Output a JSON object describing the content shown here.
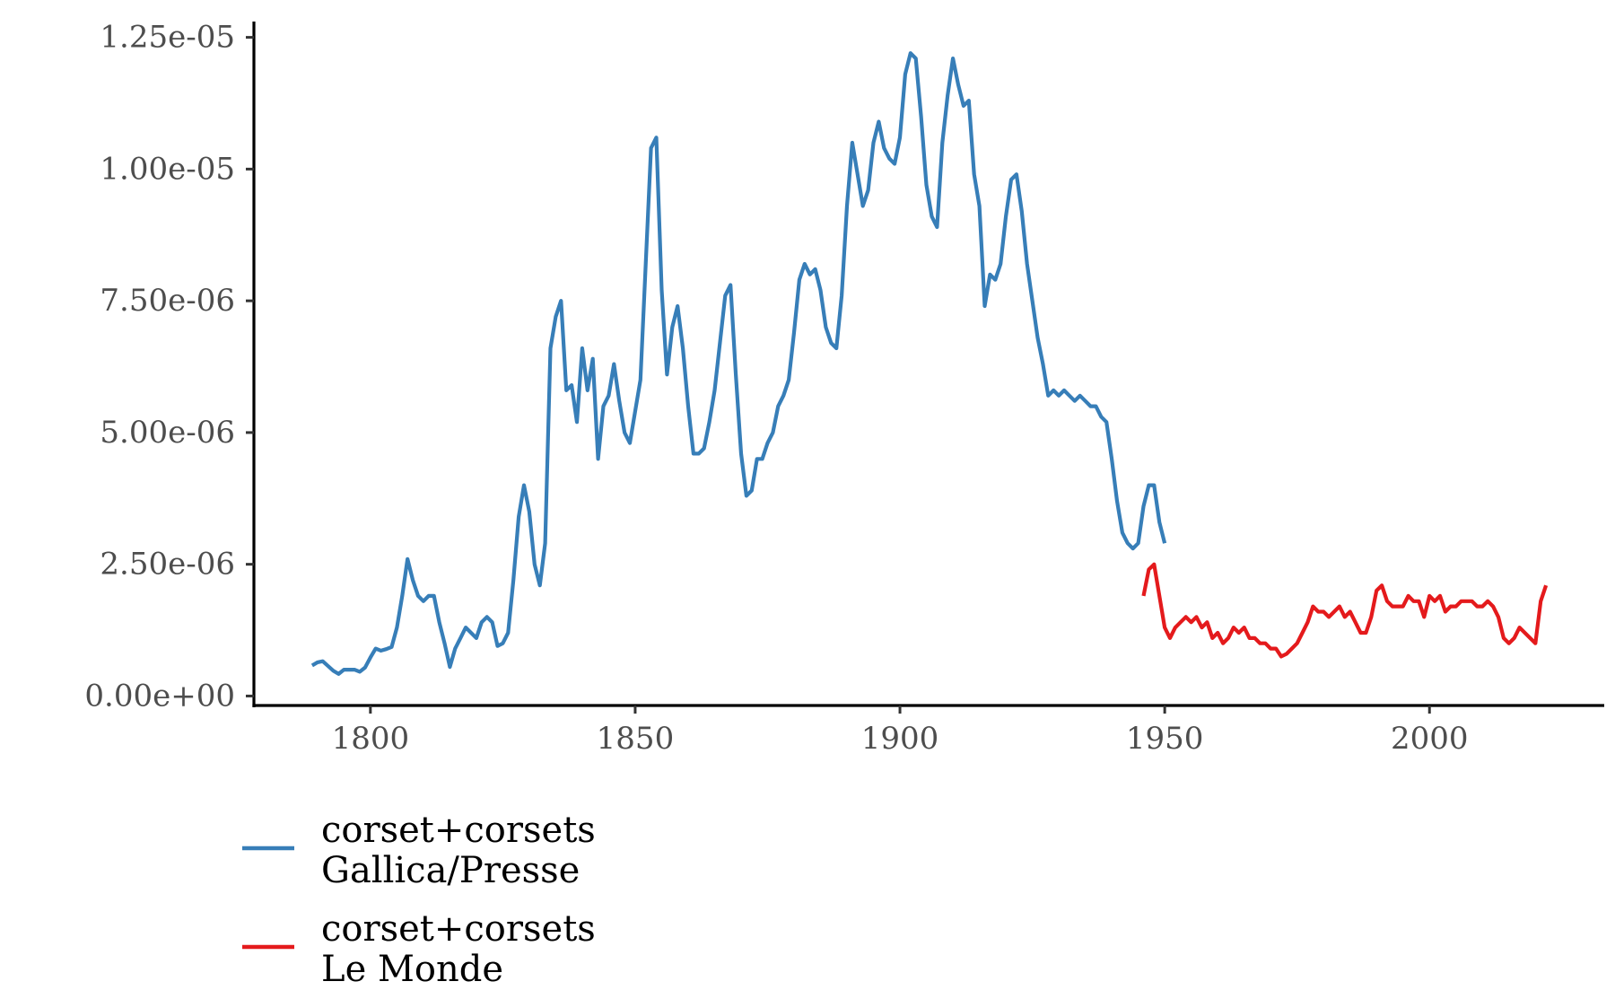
{
  "chart_data": {
    "type": "line",
    "title": "",
    "xlabel": "",
    "ylabel": "",
    "xlim": [
      1778,
      2033
    ],
    "ylim": [
      -1.8e-07,
      1.28e-05
    ],
    "x_ticks": [
      1800,
      1850,
      1900,
      1950,
      2000
    ],
    "x_tick_labels": [
      "1800",
      "1850",
      "1900",
      "1950",
      "2000"
    ],
    "y_ticks": [
      0,
      2.5e-06,
      5e-06,
      7.5e-06,
      1e-05,
      1.25e-05
    ],
    "y_tick_labels": [
      "0.00e+00",
      "2.50e-06",
      "5.00e-06",
      "7.50e-06",
      "1.00e-05",
      "1.25e-05"
    ],
    "grid": false,
    "legend_position": "bottom-left",
    "series": [
      {
        "name": "corset+corsets\nGallica/Presse",
        "name_lines": [
          "corset+corsets",
          "Gallica/Presse"
        ],
        "color": "#377eb8",
        "x": [
          1789,
          1790,
          1791,
          1792,
          1793,
          1794,
          1795,
          1796,
          1797,
          1798,
          1799,
          1800,
          1801,
          1802,
          1803,
          1804,
          1805,
          1806,
          1807,
          1808,
          1809,
          1810,
          1811,
          1812,
          1813,
          1814,
          1815,
          1816,
          1817,
          1818,
          1819,
          1820,
          1821,
          1822,
          1823,
          1824,
          1825,
          1826,
          1827,
          1828,
          1829,
          1830,
          1831,
          1832,
          1833,
          1834,
          1835,
          1836,
          1837,
          1838,
          1839,
          1840,
          1841,
          1842,
          1843,
          1844,
          1845,
          1846,
          1847,
          1848,
          1849,
          1850,
          1851,
          1852,
          1853,
          1854,
          1855,
          1856,
          1857,
          1858,
          1859,
          1860,
          1861,
          1862,
          1863,
          1864,
          1865,
          1866,
          1867,
          1868,
          1869,
          1870,
          1871,
          1872,
          1873,
          1874,
          1875,
          1876,
          1877,
          1878,
          1879,
          1880,
          1881,
          1882,
          1883,
          1884,
          1885,
          1886,
          1887,
          1888,
          1889,
          1890,
          1891,
          1892,
          1893,
          1894,
          1895,
          1896,
          1897,
          1898,
          1899,
          1900,
          1901,
          1902,
          1903,
          1904,
          1905,
          1906,
          1907,
          1908,
          1909,
          1910,
          1911,
          1912,
          1913,
          1914,
          1915,
          1916,
          1917,
          1918,
          1919,
          1920,
          1921,
          1922,
          1923,
          1924,
          1925,
          1926,
          1927,
          1928,
          1929,
          1930,
          1931,
          1932,
          1933,
          1934,
          1935,
          1936,
          1937,
          1938,
          1939,
          1940,
          1941,
          1942,
          1943,
          1944,
          1945,
          1946,
          1947,
          1948,
          1949,
          1950
        ],
        "values": [
          5.8e-07,
          6.4e-07,
          6.6e-07,
          5.7e-07,
          4.8e-07,
          4.2e-07,
          5e-07,
          5e-07,
          5e-07,
          4.6e-07,
          5.4e-07,
          7.3e-07,
          9e-07,
          8.6e-07,
          8.9e-07,
          9.3e-07,
          1.3e-06,
          1.9e-06,
          2.6e-06,
          2.2e-06,
          1.9e-06,
          1.8e-06,
          1.9e-06,
          1.9e-06,
          1.4e-06,
          1e-06,
          5.5e-07,
          9e-07,
          1.1e-06,
          1.3e-06,
          1.2e-06,
          1.1e-06,
          1.4e-06,
          1.5e-06,
          1.4e-06,
          9.5e-07,
          1e-06,
          1.2e-06,
          2.2e-06,
          3.4e-06,
          4e-06,
          3.5e-06,
          2.5e-06,
          2.1e-06,
          2.9e-06,
          6.6e-06,
          7.2e-06,
          7.5e-06,
          5.8e-06,
          5.9e-06,
          5.2e-06,
          6.6e-06,
          5.8e-06,
          6.4e-06,
          4.5e-06,
          5.5e-06,
          5.7e-06,
          6.3e-06,
          5.6e-06,
          5e-06,
          4.8e-06,
          5.4e-06,
          6e-06,
          8.2e-06,
          1.04e-05,
          1.06e-05,
          7.7e-06,
          6.1e-06,
          7e-06,
          7.4e-06,
          6.6e-06,
          5.5e-06,
          4.6e-06,
          4.6e-06,
          4.7e-06,
          5.2e-06,
          5.8e-06,
          6.7e-06,
          7.6e-06,
          7.8e-06,
          6.1e-06,
          4.6e-06,
          3.8e-06,
          3.9e-06,
          4.5e-06,
          4.5e-06,
          4.8e-06,
          5e-06,
          5.5e-06,
          5.7e-06,
          6e-06,
          6.9e-06,
          7.9e-06,
          8.2e-06,
          8e-06,
          8.1e-06,
          7.7e-06,
          7e-06,
          6.7e-06,
          6.6e-06,
          7.6e-06,
          9.3e-06,
          1.05e-05,
          9.9e-06,
          9.3e-06,
          9.6e-06,
          1.05e-05,
          1.09e-05,
          1.04e-05,
          1.02e-05,
          1.01e-05,
          1.06e-05,
          1.18e-05,
          1.22e-05,
          1.21e-05,
          1.1e-05,
          9.7e-06,
          9.1e-06,
          8.9e-06,
          1.05e-05,
          1.14e-05,
          1.21e-05,
          1.16e-05,
          1.12e-05,
          1.13e-05,
          9.9e-06,
          9.3e-06,
          7.4e-06,
          8e-06,
          7.9e-06,
          8.2e-06,
          9.1e-06,
          9.8e-06,
          9.9e-06,
          9.2e-06,
          8.2e-06,
          7.5e-06,
          6.8e-06,
          6.3e-06,
          5.7e-06,
          5.8e-06,
          5.7e-06,
          5.8e-06,
          5.7e-06,
          5.6e-06,
          5.7e-06,
          5.6e-06,
          5.5e-06,
          5.5e-06,
          5.3e-06,
          5.2e-06,
          4.5e-06,
          3.7e-06,
          3.1e-06,
          2.9e-06,
          2.8e-06,
          2.9e-06,
          3.6e-06,
          4e-06,
          4e-06,
          3.3e-06,
          2.9e-06
        ]
      },
      {
        "name": "corset+corsets\nLe Monde",
        "name_lines": [
          "corset+corsets",
          "Le Monde"
        ],
        "color": "#e41a1c",
        "x": [
          1946,
          1947,
          1948,
          1949,
          1950,
          1951,
          1952,
          1953,
          1954,
          1955,
          1956,
          1957,
          1958,
          1959,
          1960,
          1961,
          1962,
          1963,
          1964,
          1965,
          1966,
          1967,
          1968,
          1969,
          1970,
          1971,
          1972,
          1973,
          1974,
          1975,
          1976,
          1977,
          1978,
          1979,
          1980,
          1981,
          1982,
          1983,
          1984,
          1985,
          1986,
          1987,
          1988,
          1989,
          1990,
          1991,
          1992,
          1993,
          1994,
          1995,
          1996,
          1997,
          1998,
          1999,
          2000,
          2001,
          2002,
          2003,
          2004,
          2005,
          2006,
          2007,
          2008,
          2009,
          2010,
          2011,
          2012,
          2013,
          2014,
          2015,
          2016,
          2017,
          2018,
          2019,
          2020,
          2021,
          2022
        ],
        "values": [
          1.9e-06,
          2.4e-06,
          2.5e-06,
          1.9e-06,
          1.3e-06,
          1.1e-06,
          1.3e-06,
          1.4e-06,
          1.5e-06,
          1.4e-06,
          1.5e-06,
          1.3e-06,
          1.4e-06,
          1.1e-06,
          1.2e-06,
          1e-06,
          1.1e-06,
          1.3e-06,
          1.2e-06,
          1.3e-06,
          1.1e-06,
          1.1e-06,
          1e-06,
          1e-06,
          9e-07,
          9e-07,
          7.5e-07,
          8e-07,
          9e-07,
          1e-06,
          1.2e-06,
          1.4e-06,
          1.7e-06,
          1.6e-06,
          1.6e-06,
          1.5e-06,
          1.6e-06,
          1.7e-06,
          1.5e-06,
          1.6e-06,
          1.4e-06,
          1.2e-06,
          1.2e-06,
          1.5e-06,
          2e-06,
          2.1e-06,
          1.8e-06,
          1.7e-06,
          1.7e-06,
          1.7e-06,
          1.9e-06,
          1.8e-06,
          1.8e-06,
          1.5e-06,
          1.9e-06,
          1.8e-06,
          1.9e-06,
          1.6e-06,
          1.7e-06,
          1.7e-06,
          1.8e-06,
          1.8e-06,
          1.8e-06,
          1.7e-06,
          1.7e-06,
          1.8e-06,
          1.7e-06,
          1.5e-06,
          1.1e-06,
          1e-06,
          1.1e-06,
          1.3e-06,
          1.2e-06,
          1.1e-06,
          1e-06,
          1.8e-06,
          2.1e-06
        ]
      }
    ]
  }
}
